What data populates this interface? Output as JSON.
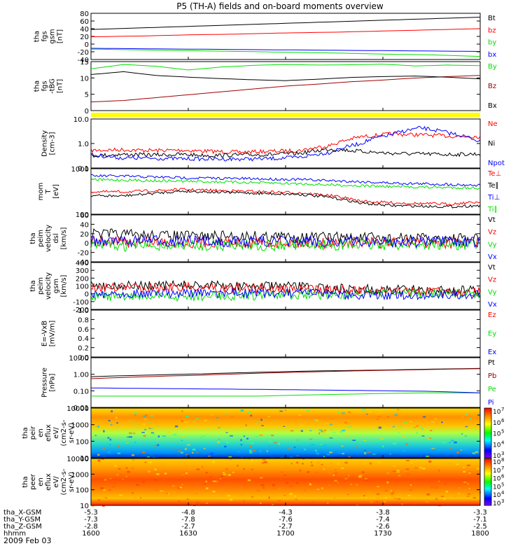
{
  "title": "P5 (TH-A) fields and on-board moments overview",
  "date_label": "2009 Feb 03",
  "colors": {
    "black": "#000000",
    "red": "#ff0000",
    "green": "#00e000",
    "blue": "#0000ff",
    "yellow": "#ffff00"
  },
  "chart_data": [
    {
      "type": "line",
      "id": "fgs",
      "ylabel_lines": [
        "tha",
        "fgs",
        "gsm",
        "[nT]"
      ],
      "ylim": [
        -40,
        80
      ],
      "yticks": [
        "80",
        "60",
        "40",
        "20",
        "0",
        "-20",
        "-40"
      ],
      "series": [
        {
          "name": "Bt",
          "color": "#000000",
          "values": [
            38,
            42,
            46,
            50,
            54,
            58,
            62,
            66,
            70
          ]
        },
        {
          "name": "bz",
          "color": "#ff0000",
          "values": [
            19,
            21,
            24,
            26,
            29,
            31,
            34,
            37,
            40
          ]
        },
        {
          "name": "by",
          "color": "#00e000",
          "values": [
            -13,
            -15,
            -17,
            -19,
            -21,
            -23,
            -26,
            -28,
            -32
          ]
        },
        {
          "name": "bx",
          "color": "#0000ff",
          "values": [
            -11,
            -12,
            -13,
            -14,
            -15,
            -16,
            -17,
            -18,
            -19
          ]
        }
      ]
    },
    {
      "type": "line",
      "id": "fgs-tbg",
      "ylabel_lines": [
        "tha",
        "fgs",
        "-tBG",
        "[nT]"
      ],
      "ylim": [
        -2,
        15
      ],
      "yticks": [
        "15",
        "10",
        "5",
        "0"
      ],
      "series": [
        {
          "name": "By",
          "color": "#00e000",
          "values": [
            12.5,
            14,
            13.4,
            12.1,
            13.1,
            13.7,
            14.0,
            13.8,
            13.9,
            14.1,
            13.5,
            13.8,
            13.6
          ]
        },
        {
          "name": "Bz",
          "color": "#a00000",
          "values": [
            1.0,
            1.5,
            2.5,
            3.5,
            4.5,
            5.5,
            6.5,
            7.2,
            8.0,
            8.6,
            9.3,
            9.8,
            10.2
          ]
        },
        {
          "name": "Bx",
          "color": "#000000",
          "values": [
            10.5,
            11.5,
            10.2,
            9.6,
            9.1,
            8.7,
            8.4,
            8.9,
            9.5,
            9.8,
            10.0,
            9.6,
            9.0
          ]
        }
      ]
    },
    {
      "type": "line",
      "id": "density",
      "log": true,
      "ylabel_lines": [
        "Density",
        "[cm-3]"
      ],
      "ylim": [
        0.1,
        15
      ],
      "yticks": [
        "10.0",
        "1.0",
        "0.1"
      ],
      "ytick_values": [
        10,
        1,
        0.1
      ],
      "series": [
        {
          "name": "Ne",
          "color": "#ff0000",
          "values": [
            0.6,
            0.65,
            0.6,
            0.62,
            0.55,
            0.5,
            0.55,
            0.6,
            1.0,
            2.4,
            3.2,
            3.0,
            2.6,
            2.5
          ]
        },
        {
          "name": "Ni",
          "color": "#000000",
          "values": [
            0.35,
            0.4,
            0.38,
            0.4,
            0.36,
            0.38,
            0.4,
            0.45,
            0.7,
            0.55,
            0.45,
            0.42,
            0.4,
            0.42
          ]
        },
        {
          "name": "Npot",
          "color": "#0000ff",
          "values": [
            0.38,
            0.28,
            0.27,
            0.26,
            0.25,
            0.25,
            0.26,
            0.3,
            0.5,
            1.2,
            3.0,
            6.0,
            3.5,
            1.5
          ]
        }
      ]
    },
    {
      "type": "line",
      "id": "temperature",
      "log": true,
      "ylabel_lines": [
        "mom",
        "T",
        "[eV]"
      ],
      "ylim": [
        90,
        6000
      ],
      "yticks": [
        "1000",
        "100"
      ],
      "ytick_values": [
        1000,
        100
      ],
      "series": [
        {
          "name": "Te⊥",
          "color": "#ff0000",
          "values": [
            720,
            700,
            780,
            880,
            820,
            760,
            700,
            650,
            500,
            300,
            260,
            240,
            230,
            280
          ]
        },
        {
          "name": "Te∥",
          "color": "#000000",
          "values": [
            500,
            480,
            600,
            760,
            700,
            650,
            600,
            560,
            420,
            250,
            200,
            190,
            180,
            200
          ]
        },
        {
          "name": "Ti⊥",
          "color": "#0000ff",
          "values": [
            3100,
            3000,
            2800,
            2600,
            2500,
            2400,
            2300,
            2200,
            2000,
            1800,
            1600,
            1500,
            1400,
            1300
          ]
        },
        {
          "name": "Ti∥",
          "color": "#00e000",
          "values": [
            2200,
            2100,
            2000,
            1900,
            1800,
            1700,
            1600,
            1500,
            1350,
            1250,
            1150,
            1100,
            1050,
            1000
          ]
        }
      ]
    },
    {
      "type": "line",
      "id": "peim-velocity-dsl",
      "ylabel_lines": [
        "tha",
        "peim",
        "velocity",
        "dsl",
        "[km/s]"
      ],
      "ylim": [
        -40,
        60
      ],
      "yticks": [
        "60",
        "40",
        "20",
        "0",
        "-20",
        "-40"
      ],
      "series": [
        {
          "name": "Vt",
          "color": "#000000",
          "values": [
            20,
            18,
            16,
            15,
            14,
            15,
            14,
            13,
            12,
            11,
            10,
            10,
            9,
            9
          ]
        },
        {
          "name": "Vz",
          "color": "#ff0000",
          "values": [
            3,
            2,
            2,
            1,
            2,
            1,
            1,
            0,
            1,
            0,
            0,
            1,
            0,
            0
          ]
        },
        {
          "name": "Vy",
          "color": "#00e000",
          "values": [
            -5,
            -6,
            -5,
            -6,
            -5,
            -4,
            -5,
            -4,
            -4,
            -3,
            -4,
            -3,
            -3,
            -3
          ]
        },
        {
          "name": "Vx",
          "color": "#0000ff",
          "values": [
            5,
            4,
            5,
            4,
            4,
            3,
            4,
            3,
            3,
            3,
            2,
            3,
            2,
            2
          ]
        }
      ]
    },
    {
      "type": "line",
      "id": "peim-velocity-gsm",
      "ylabel_lines": [
        "tha",
        "peim",
        "velocity",
        "gsm",
        "[km/s]"
      ],
      "ylim": [
        -200,
        400
      ],
      "yticks": [
        "400",
        "300",
        "200",
        "100",
        "0",
        "-100",
        "-200"
      ],
      "series": [
        {
          "name": "Vt",
          "color": "#000000",
          "values": [
            110,
            105,
            100,
            110,
            105,
            100,
            95,
            90,
            70,
            60,
            55,
            50,
            45,
            40
          ]
        },
        {
          "name": "Vz",
          "color": "#ff0000",
          "values": [
            80,
            85,
            80,
            85,
            80,
            75,
            70,
            60,
            50,
            40,
            35,
            30,
            30,
            25
          ]
        },
        {
          "name": "Vy",
          "color": "#00e000",
          "values": [
            -30,
            -40,
            -35,
            -40,
            -30,
            -25,
            -20,
            -15,
            -10,
            -5,
            0,
            0,
            5,
            5
          ]
        },
        {
          "name": "Vx",
          "color": "#0000ff",
          "values": [
            0,
            5,
            10,
            5,
            5,
            10,
            5,
            0,
            -10,
            -15,
            -20,
            -20,
            -15,
            -10
          ]
        }
      ]
    },
    {
      "type": "line",
      "id": "e-vxb",
      "ylabel_lines": [
        "E=-VxB",
        "[mV/m]"
      ],
      "ylim": [
        0,
        1
      ],
      "yticks": [
        "1.0",
        "0.8",
        "0.6",
        "0.4",
        "0.2",
        "0.0"
      ],
      "series": [
        {
          "name": "Ez",
          "color": "#ff0000",
          "values": []
        },
        {
          "name": "Ey",
          "color": "#00e000",
          "values": []
        },
        {
          "name": "Ex",
          "color": "#0000ff",
          "values": []
        }
      ]
    },
    {
      "type": "line",
      "id": "pressure",
      "log": true,
      "ylabel_lines": [
        "Pressure",
        "[nPa]"
      ],
      "ylim": [
        0.01,
        12
      ],
      "yticks": [
        "10.00",
        "1.00",
        "0.10",
        "0.01"
      ],
      "ytick_values": [
        10,
        1,
        0.1,
        0.01
      ],
      "series": [
        {
          "name": "Pt",
          "color": "#000000",
          "values": [
            0.8,
            1.0,
            1.2,
            1.5,
            1.8,
            2.0,
            2.3,
            2.6
          ]
        },
        {
          "name": "Pb",
          "color": "#a00000",
          "values": [
            0.6,
            0.8,
            1.0,
            1.3,
            1.6,
            1.9,
            2.2,
            2.5
          ]
        },
        {
          "name": "Pe",
          "color": "#00e000",
          "values": [
            0.05,
            0.05,
            0.05,
            0.05,
            0.06,
            0.07,
            0.08,
            0.08
          ]
        },
        {
          "name": "Pi",
          "color": "#0000ff",
          "values": [
            0.16,
            0.15,
            0.14,
            0.13,
            0.12,
            0.11,
            0.1,
            0.08
          ]
        }
      ]
    },
    {
      "type": "heatmap",
      "id": "peir",
      "ylabel_lines": [
        "tha",
        "peir",
        "en",
        "eflux",
        "eV/",
        "(cm2-s-",
        "sr-eV)"
      ],
      "yticks": [
        "10000",
        "1000",
        "100",
        "10"
      ],
      "colorbar_ticks": [
        "10",
        "10",
        "10",
        "10",
        "10"
      ],
      "colorbar_exponents": [
        "7",
        "6",
        "5",
        "4",
        "3"
      ]
    },
    {
      "type": "heatmap",
      "id": "peer",
      "ylabel_lines": [
        "tha",
        "peer",
        "en",
        "eflux",
        "eV/",
        "(cm2-s-",
        "sr-eV)"
      ],
      "yticks": [
        "10000",
        "1000",
        "100",
        "10"
      ],
      "colorbar_ticks": [
        "10",
        "10",
        "10",
        "10",
        "10",
        "10"
      ],
      "colorbar_exponents": [
        "8",
        "7",
        "6",
        "5",
        "4",
        "3"
      ]
    }
  ],
  "time_axis": {
    "rows": [
      {
        "label": "tha_X-GSM",
        "values": [
          "-5.3",
          "-4.8",
          "-4.3",
          "-3.8",
          "-3.3"
        ]
      },
      {
        "label": "tha_Y-GSM",
        "values": [
          "-7.3",
          "-7.8",
          "-7.6",
          "-7.4",
          "-7.1"
        ]
      },
      {
        "label": "tha_Z-GSM",
        "values": [
          "-2.8",
          "-2.7",
          "-2.7",
          "-2.6",
          "-2.5"
        ]
      },
      {
        "label": "hhmm",
        "values": [
          "1600",
          "1630",
          "1700",
          "1730",
          "1800"
        ]
      }
    ]
  }
}
